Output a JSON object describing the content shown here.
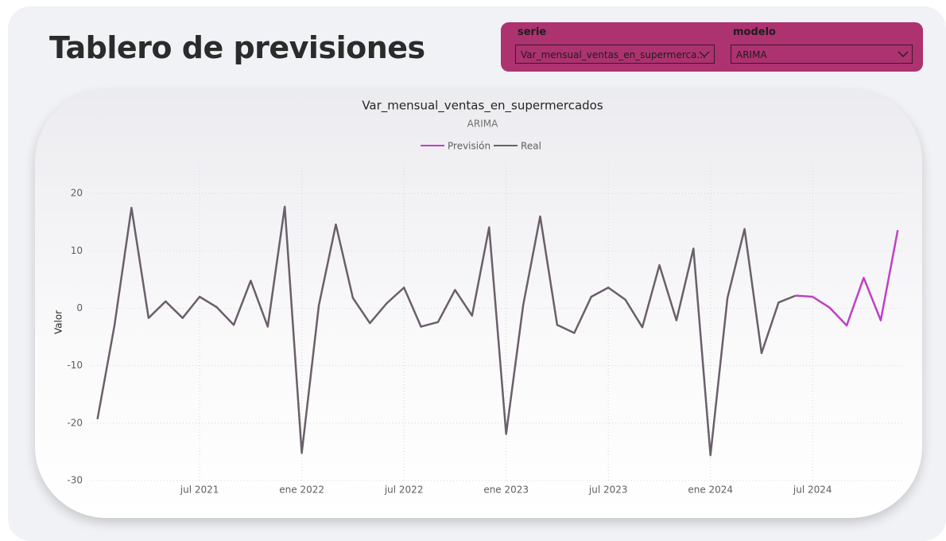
{
  "header": {
    "title": "Tablero de previsiones"
  },
  "filters": [
    {
      "label": "serie",
      "value": "Var_mensual_ventas_en_supermerca..."
    },
    {
      "label": "modelo",
      "value": "ARIMA"
    }
  ],
  "chart_data": {
    "type": "line",
    "title": "Var_mensual_ventas_en_supermercados",
    "subtitle": "ARIMA",
    "y_label": "Valor",
    "x": [
      "2021-01",
      "2021-02",
      "2021-03",
      "2021-04",
      "2021-05",
      "2021-06",
      "2021-07",
      "2021-08",
      "2021-09",
      "2021-10",
      "2021-11",
      "2021-12",
      "2022-01",
      "2022-02",
      "2022-03",
      "2022-04",
      "2022-05",
      "2022-06",
      "2022-07",
      "2022-08",
      "2022-09",
      "2022-10",
      "2022-11",
      "2022-12",
      "2023-01",
      "2023-02",
      "2023-03",
      "2023-04",
      "2023-05",
      "2023-06",
      "2023-07",
      "2023-08",
      "2023-09",
      "2023-10",
      "2023-11",
      "2023-12",
      "2024-01",
      "2024-02",
      "2024-03",
      "2024-04",
      "2024-05",
      "2024-06",
      "2024-07",
      "2024-08",
      "2024-09",
      "2024-10",
      "2024-11",
      "2024-12"
    ],
    "series": [
      {
        "name": "Previsión",
        "color": "#c03fc6",
        "values": [
          null,
          null,
          null,
          null,
          null,
          null,
          null,
          null,
          null,
          null,
          null,
          null,
          null,
          null,
          null,
          null,
          null,
          null,
          null,
          null,
          null,
          null,
          null,
          null,
          null,
          null,
          null,
          null,
          null,
          null,
          null,
          null,
          null,
          null,
          null,
          null,
          null,
          null,
          null,
          null,
          null,
          2.2,
          2,
          0.1,
          -3,
          5.3,
          -2.1,
          13.6
        ]
      },
      {
        "name": "Real",
        "color": "#6b5f6a",
        "values": [
          -19.3,
          -3,
          17.5,
          -1.7,
          1.2,
          -1.7,
          2,
          0.2,
          -2.9,
          4.8,
          -3.2,
          17.7,
          -25.2,
          0.5,
          14.6,
          1.8,
          -2.6,
          0.9,
          3.6,
          -3.2,
          -2.4,
          3.2,
          -1.3,
          14.1,
          -21.9,
          0.5,
          16,
          -2.9,
          -4.3,
          2,
          3.6,
          1.5,
          -3.3,
          7.5,
          -2.1,
          10.4,
          -25.6,
          1.8,
          13.8,
          -7.8,
          1,
          2.2,
          null,
          null,
          null,
          null,
          null,
          null
        ]
      }
    ],
    "ylim": [
      -30,
      25
    ],
    "yticks": [
      -30,
      -20,
      -10,
      0,
      10,
      20
    ],
    "xticks": [
      {
        "value": "2021-07",
        "label": "jul 2021"
      },
      {
        "value": "2022-01",
        "label": "ene 2022"
      },
      {
        "value": "2022-07",
        "label": "jul 2022"
      },
      {
        "value": "2023-01",
        "label": "ene 2023"
      },
      {
        "value": "2023-07",
        "label": "jul 2023"
      },
      {
        "value": "2024-01",
        "label": "ene 2024"
      },
      {
        "value": "2024-07",
        "label": "jul 2024"
      }
    ],
    "grid": true,
    "legend": "top"
  }
}
